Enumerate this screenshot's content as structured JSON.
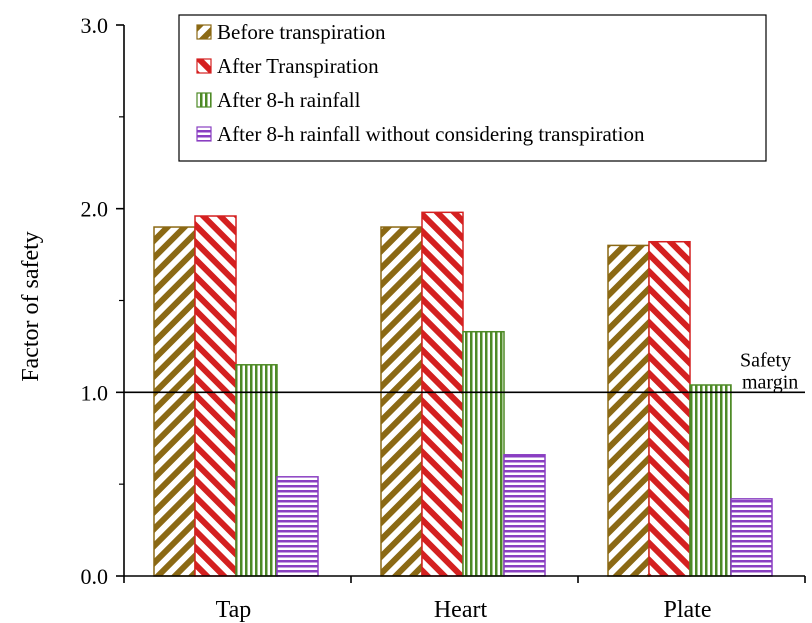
{
  "chart_data": {
    "type": "bar",
    "categories": [
      "Tap",
      "Heart",
      "Plate"
    ],
    "series": [
      {
        "name": "Before transpiration",
        "values": [
          1.9,
          1.9,
          1.8
        ],
        "color": "#8B6914",
        "pattern": "diagonal-up"
      },
      {
        "name": "After Transpiration",
        "values": [
          1.96,
          1.98,
          1.82
        ],
        "color": "#d42020",
        "pattern": "diagonal-down"
      },
      {
        "name": "After 8-h rainfall",
        "values": [
          1.15,
          1.33,
          1.04
        ],
        "color": "#4e8a26",
        "pattern": "vertical"
      },
      {
        "name": "After 8-h rainfall without considering transpiration",
        "values": [
          0.54,
          0.66,
          0.42
        ],
        "color": "#8a3fc2",
        "pattern": "horizontal"
      }
    ],
    "xlabel": "",
    "ylabel": "Factor of safety",
    "ylim": [
      0,
      3.0
    ],
    "yticks": [
      "0.0",
      "1.0",
      "2.0",
      "3.0"
    ],
    "reference_line": {
      "value": 1.0,
      "label_line1": "Safety",
      "label_line2": "margin"
    },
    "legend_placement": "top",
    "grid": false
  }
}
